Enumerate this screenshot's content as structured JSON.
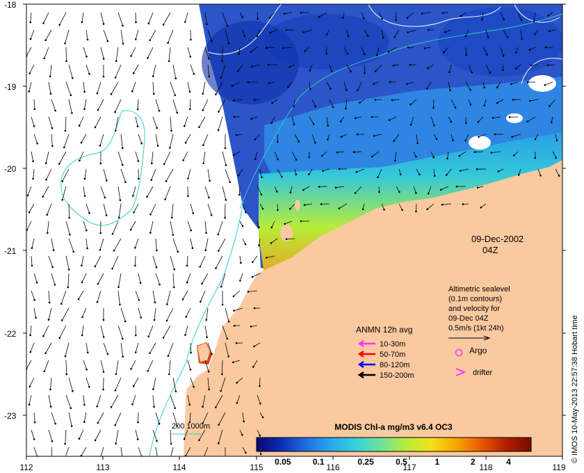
{
  "map": {
    "date": "09-Dec-2002",
    "time": "04Z",
    "credit": "© IMOS 10-May-2013 22:57:38 Hobart time",
    "lat_labels": [
      "-18",
      "-19",
      "-20",
      "-21",
      "-22",
      "-23"
    ],
    "lon_labels": [
      "112",
      "113",
      "114",
      "115",
      "116",
      "117",
      "118",
      "119"
    ],
    "altimetry": {
      "line1": "Altimetric sealevel",
      "line2": "(0.1m contours)",
      "line3": "and velocity for",
      "line4": "09-Dec 04Z",
      "line5": "0.5m/s (1kt 24h)"
    },
    "anmn": {
      "title": "ANMN 12h avg",
      "items": [
        {
          "label": "10-30m",
          "color": "#ff33ff"
        },
        {
          "label": "50-70m",
          "color": "#ff0000"
        },
        {
          "label": "80-120m",
          "color": "#0000ff"
        },
        {
          "label": "150-200m",
          "color": "#000000"
        }
      ]
    },
    "argo_label": "Argo",
    "drifter_label": "drifter",
    "isobath_label": "200  1000m",
    "colorbar": {
      "title": "MODIS Chl-a mg/m3 v6.4 OC3",
      "ticks": [
        "0.05",
        "0.1",
        "0.25",
        "0.5",
        "1",
        "2",
        "4"
      ],
      "colors": [
        "#08086e",
        "#0a2fb8",
        "#1f6fe0",
        "#2aa8ee",
        "#34d3d9",
        "#6fe39a",
        "#b8ec3a",
        "#f2e11a",
        "#f8a500",
        "#e85a00",
        "#b01e00",
        "#7a0a00"
      ]
    },
    "colors": {
      "land": "#f9c9a0",
      "ocean_deep": "#2b55c8",
      "isobath": "#33cccc",
      "contour": "#ffffff",
      "argo": "#ff33ff"
    }
  }
}
